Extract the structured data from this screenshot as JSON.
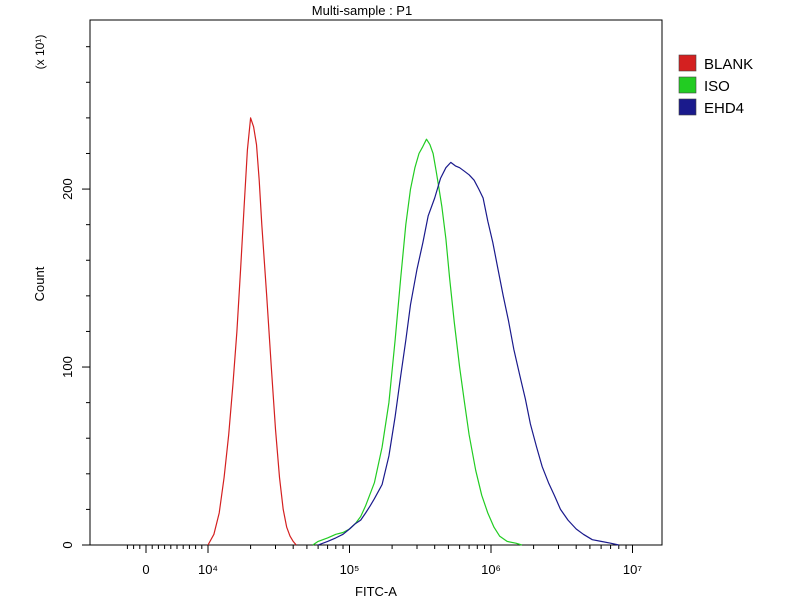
{
  "chart_data": {
    "type": "line",
    "title": "Multi-sample : P1",
    "xlabel": "FITC-A",
    "ylabel": "Count",
    "y_multiplier": "(x 10¹)",
    "xscale": "biexponential",
    "x_ticks": [
      {
        "value": 0,
        "label": "0"
      },
      {
        "value": 10000,
        "label": "10⁴"
      },
      {
        "value": 100000,
        "label": "10⁵"
      },
      {
        "value": 1000000,
        "label": "10⁶"
      },
      {
        "value": 10000000,
        "label": "10⁷"
      }
    ],
    "xlim": [
      -3000,
      12000000
    ],
    "y_ticks": [
      {
        "value": 0,
        "label": "0"
      },
      {
        "value": 100,
        "label": "100"
      },
      {
        "value": 200,
        "label": "200"
      }
    ],
    "ylim": [
      0,
      295
    ],
    "legend_position": "right",
    "series": [
      {
        "name": "BLANK",
        "color": "#d42020",
        "points": [
          [
            10000,
            0
          ],
          [
            11000,
            6
          ],
          [
            12000,
            18
          ],
          [
            13000,
            38
          ],
          [
            14000,
            62
          ],
          [
            15000,
            90
          ],
          [
            16000,
            120
          ],
          [
            17000,
            155
          ],
          [
            18000,
            190
          ],
          [
            19000,
            222
          ],
          [
            20000,
            240
          ],
          [
            21000,
            235
          ],
          [
            22000,
            225
          ],
          [
            23000,
            205
          ],
          [
            24000,
            180
          ],
          [
            26000,
            140
          ],
          [
            28000,
            100
          ],
          [
            30000,
            65
          ],
          [
            32000,
            38
          ],
          [
            34000,
            20
          ],
          [
            36000,
            10
          ],
          [
            38000,
            5
          ],
          [
            40000,
            2
          ],
          [
            42000,
            0
          ]
        ]
      },
      {
        "name": "ISO",
        "color": "#22cc22",
        "points": [
          [
            55000,
            0
          ],
          [
            60000,
            2
          ],
          [
            70000,
            4
          ],
          [
            80000,
            6
          ],
          [
            90000,
            7
          ],
          [
            100000,
            9
          ],
          [
            110000,
            12
          ],
          [
            120000,
            16
          ],
          [
            130000,
            22
          ],
          [
            150000,
            35
          ],
          [
            170000,
            55
          ],
          [
            190000,
            80
          ],
          [
            210000,
            115
          ],
          [
            230000,
            150
          ],
          [
            250000,
            180
          ],
          [
            270000,
            200
          ],
          [
            290000,
            212
          ],
          [
            310000,
            220
          ],
          [
            330000,
            224
          ],
          [
            350000,
            228
          ],
          [
            370000,
            225
          ],
          [
            390000,
            220
          ],
          [
            410000,
            210
          ],
          [
            430000,
            200
          ],
          [
            450000,
            190
          ],
          [
            480000,
            172
          ],
          [
            510000,
            150
          ],
          [
            550000,
            125
          ],
          [
            600000,
            100
          ],
          [
            650000,
            80
          ],
          [
            700000,
            62
          ],
          [
            780000,
            42
          ],
          [
            860000,
            28
          ],
          [
            950000,
            18
          ],
          [
            1050000,
            10
          ],
          [
            1150000,
            5
          ],
          [
            1300000,
            2
          ],
          [
            1500000,
            1
          ],
          [
            1650000,
            0
          ]
        ]
      },
      {
        "name": "EHD4",
        "color": "#1a1a8c",
        "points": [
          [
            60000,
            0
          ],
          [
            70000,
            2
          ],
          [
            80000,
            4
          ],
          [
            90000,
            6
          ],
          [
            100000,
            9
          ],
          [
            110000,
            12
          ],
          [
            120000,
            14
          ],
          [
            130000,
            18
          ],
          [
            140000,
            22
          ],
          [
            150000,
            26
          ],
          [
            170000,
            34
          ],
          [
            190000,
            50
          ],
          [
            210000,
            72
          ],
          [
            230000,
            95
          ],
          [
            250000,
            115
          ],
          [
            270000,
            135
          ],
          [
            300000,
            155
          ],
          [
            330000,
            170
          ],
          [
            360000,
            185
          ],
          [
            400000,
            195
          ],
          [
            440000,
            206
          ],
          [
            480000,
            212
          ],
          [
            520000,
            215
          ],
          [
            560000,
            213
          ],
          [
            600000,
            212
          ],
          [
            650000,
            210
          ],
          [
            700000,
            208
          ],
          [
            760000,
            205
          ],
          [
            820000,
            200
          ],
          [
            880000,
            195
          ],
          [
            950000,
            182
          ],
          [
            1030000,
            170
          ],
          [
            1120000,
            155
          ],
          [
            1220000,
            140
          ],
          [
            1330000,
            126
          ],
          [
            1450000,
            110
          ],
          [
            1600000,
            95
          ],
          [
            1750000,
            82
          ],
          [
            1900000,
            68
          ],
          [
            2100000,
            55
          ],
          [
            2300000,
            44
          ],
          [
            2550000,
            35
          ],
          [
            2800000,
            28
          ],
          [
            3100000,
            20
          ],
          [
            3500000,
            14
          ],
          [
            4000000,
            9
          ],
          [
            4500000,
            6
          ],
          [
            5200000,
            3
          ],
          [
            6000000,
            2
          ],
          [
            7000000,
            1
          ],
          [
            8000000,
            0
          ]
        ]
      }
    ]
  }
}
